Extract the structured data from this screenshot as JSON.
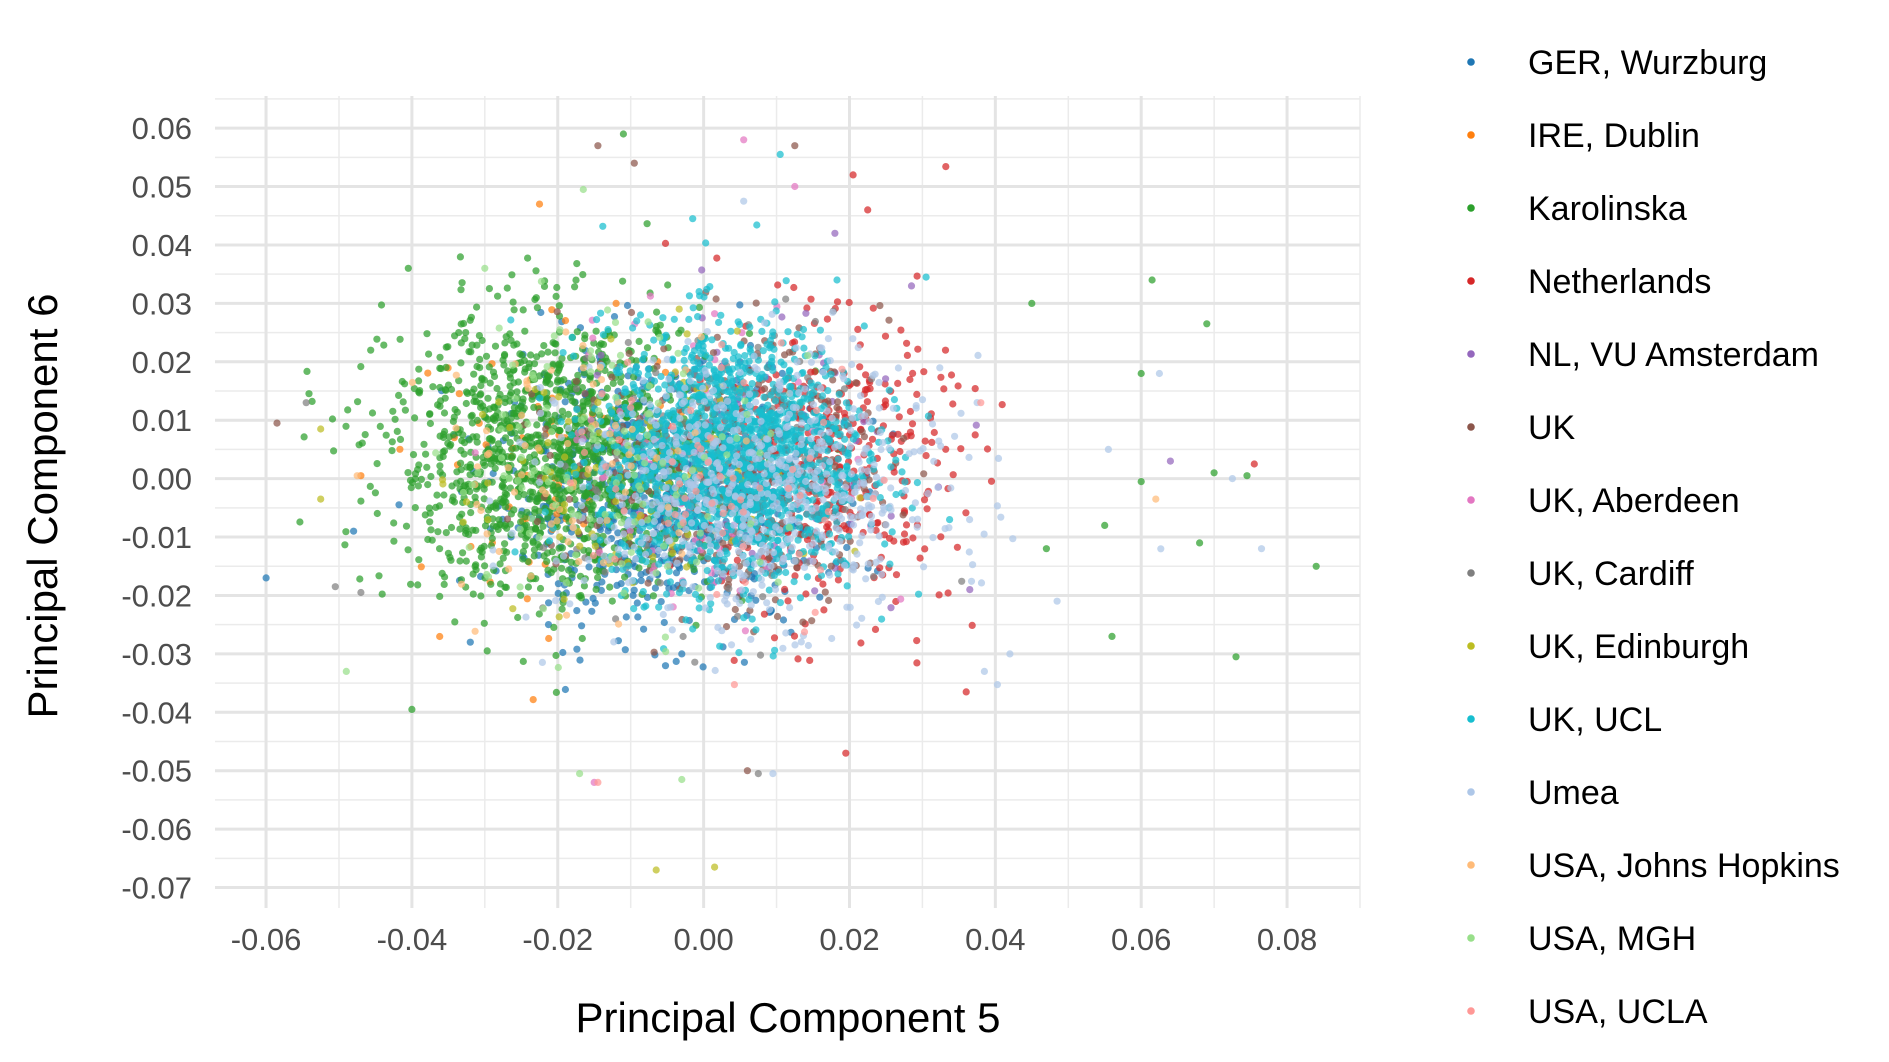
{
  "chart_data": {
    "type": "scatter",
    "xlabel": "Principal Component 5",
    "ylabel": "Principal Component 6",
    "xlim": [
      -0.067,
      0.09
    ],
    "ylim": [
      -0.0735,
      0.0655
    ],
    "x_ticks": [
      -0.06,
      -0.04,
      -0.02,
      0.0,
      0.02,
      0.04,
      0.06,
      0.08
    ],
    "x_tick_labels": [
      "-0.06",
      "-0.04",
      "-0.02",
      "0.00",
      "0.02",
      "0.04",
      "0.06",
      "0.08"
    ],
    "y_ticks": [
      0.06,
      0.05,
      0.04,
      0.03,
      0.02,
      0.01,
      0.0,
      -0.01,
      -0.02,
      -0.03,
      -0.04,
      -0.05,
      -0.06,
      -0.07
    ],
    "y_tick_labels": [
      "0.06",
      "0.05",
      "0.04",
      "0.03",
      "0.02",
      "0.01",
      "0.00",
      "-0.01",
      "-0.02",
      "-0.03",
      "-0.04",
      "-0.05",
      "-0.06",
      "-0.07"
    ],
    "grid": true,
    "legend_position": "right",
    "series": [
      {
        "name": "GER, Wurzburg",
        "color": "#1f77b4",
        "center": [
          -0.006,
          -0.003
        ],
        "spread": [
          0.011,
          0.011
        ],
        "n": 700,
        "points": [
          [
            -0.06,
            -0.017
          ],
          [
            -0.048,
            -0.009
          ],
          [
            -0.032,
            -0.028
          ],
          [
            0.005,
            0.02
          ],
          [
            -0.003,
            -0.03
          ]
        ]
      },
      {
        "name": "IRE, Dublin",
        "color": "#ff7f0e",
        "center": [
          -0.02,
          0.002
        ],
        "spread": [
          0.01,
          0.012
        ],
        "n": 60,
        "points": [
          [
            -0.0225,
            0.047
          ],
          [
            -0.047,
            0.0005
          ],
          [
            -0.012,
            0.03
          ]
        ]
      },
      {
        "name": "Karolinska",
        "color": "#2ca02c",
        "center": [
          -0.021,
          0.004
        ],
        "spread": [
          0.011,
          0.012
        ],
        "n": 1300,
        "points": [
          [
            -0.011,
            0.059
          ],
          [
            0.069,
            0.0265
          ],
          [
            0.084,
            -0.015
          ],
          [
            0.073,
            -0.0305
          ],
          [
            0.0615,
            0.034
          ],
          [
            0.045,
            0.03
          ],
          [
            0.056,
            -0.027
          ],
          [
            -0.04,
            -0.0395
          ],
          [
            -0.0405,
            0.036
          ],
          [
            0.06,
            0.018
          ],
          [
            0.068,
            -0.011
          ],
          [
            0.0745,
            0.0005
          ],
          [
            0.055,
            -0.008
          ],
          [
            0.047,
            -0.012
          ],
          [
            0.06,
            -0.0005
          ],
          [
            0.07,
            0.001
          ]
        ]
      },
      {
        "name": "Netherlands",
        "color": "#d62728",
        "center": [
          0.016,
          0.002
        ],
        "spread": [
          0.009,
          0.012
        ],
        "n": 450,
        "points": [
          [
            0.0205,
            0.052
          ],
          [
            0.0755,
            0.0025
          ],
          [
            0.0195,
            -0.047
          ],
          [
            0.036,
            -0.0365
          ],
          [
            0.0225,
            0.046
          ]
        ]
      },
      {
        "name": "NL, VU Amsterdam",
        "color": "#9467bd",
        "center": [
          0.01,
          0.005
        ],
        "spread": [
          0.01,
          0.012
        ],
        "n": 60,
        "points": [
          [
            0.064,
            0.003
          ],
          [
            0.0365,
            -0.019
          ],
          [
            0.0285,
            0.033
          ],
          [
            0.018,
            0.042
          ]
        ]
      },
      {
        "name": "UK",
        "color": "#8c564b",
        "center": [
          0.003,
          0.001
        ],
        "spread": [
          0.011,
          0.012
        ],
        "n": 350,
        "points": [
          [
            -0.0145,
            0.057
          ],
          [
            -0.0095,
            0.054
          ],
          [
            0.0125,
            0.057
          ],
          [
            -0.0585,
            0.0095
          ],
          [
            0.006,
            -0.05
          ]
        ]
      },
      {
        "name": "UK, Aberdeen",
        "color": "#e377c2",
        "center": [
          0.001,
          0.002
        ],
        "spread": [
          0.011,
          0.013
        ],
        "n": 90,
        "points": [
          [
            0.0055,
            0.058
          ],
          [
            -0.015,
            -0.052
          ],
          [
            0.0125,
            0.05
          ]
        ]
      },
      {
        "name": "UK, Cardiff",
        "color": "#7f7f7f",
        "center": [
          0.002,
          0.0
        ],
        "spread": [
          0.011,
          0.013
        ],
        "n": 150,
        "points": [
          [
            -0.0545,
            0.013
          ],
          [
            -0.0505,
            -0.0185
          ],
          [
            -0.047,
            -0.0195
          ],
          [
            0.0075,
            -0.0505
          ]
        ]
      },
      {
        "name": "UK, Edinburgh",
        "color": "#bcbd22",
        "center": [
          -0.01,
          0.0
        ],
        "spread": [
          0.011,
          0.012
        ],
        "n": 110,
        "points": [
          [
            -0.0065,
            -0.067
          ],
          [
            0.0015,
            -0.0665
          ],
          [
            -0.0525,
            0.0085
          ],
          [
            -0.0525,
            -0.0035
          ]
        ]
      },
      {
        "name": "UK, UCL",
        "color": "#17becf",
        "center": [
          0.004,
          0.004
        ],
        "spread": [
          0.009,
          0.011
        ],
        "n": 1500,
        "points": [
          [
            0.0105,
            0.0555
          ],
          [
            0.0305,
            0.0345
          ],
          [
            -0.0015,
            0.0445
          ]
        ]
      },
      {
        "name": "Umea",
        "color": "#aec7e8",
        "center": [
          0.007,
          -0.002
        ],
        "spread": [
          0.013,
          0.011
        ],
        "n": 650,
        "points": [
          [
            0.0765,
            -0.012
          ],
          [
            0.0625,
            0.018
          ],
          [
            0.0725,
            0.0
          ],
          [
            0.042,
            -0.03
          ],
          [
            0.0385,
            -0.033
          ],
          [
            0.0095,
            -0.0505
          ],
          [
            0.0055,
            0.0475
          ],
          [
            0.0555,
            0.005
          ]
        ]
      },
      {
        "name": "USA, Johns Hopkins",
        "color": "#ffbb78",
        "center": [
          -0.018,
          0.002
        ],
        "spread": [
          0.01,
          0.012
        ],
        "n": 70,
        "points": [
          [
            -0.0475,
            0.0005
          ],
          [
            0.062,
            -0.0035
          ]
        ]
      },
      {
        "name": "USA, MGH",
        "color": "#98df8a",
        "center": [
          -0.013,
          0.003
        ],
        "spread": [
          0.011,
          0.013
        ],
        "n": 120,
        "points": [
          [
            -0.0165,
            0.0495
          ],
          [
            -0.049,
            -0.033
          ],
          [
            -0.03,
            0.036
          ],
          [
            -0.003,
            -0.0515
          ],
          [
            -0.017,
            -0.0505
          ]
        ]
      },
      {
        "name": "USA, UCLA",
        "color": "#ff9896",
        "center": [
          0.002,
          0.0
        ],
        "spread": [
          0.011,
          0.012
        ],
        "n": 60,
        "points": [
          [
            -0.0145,
            -0.052
          ],
          [
            0.038,
            0.013
          ]
        ]
      }
    ]
  }
}
